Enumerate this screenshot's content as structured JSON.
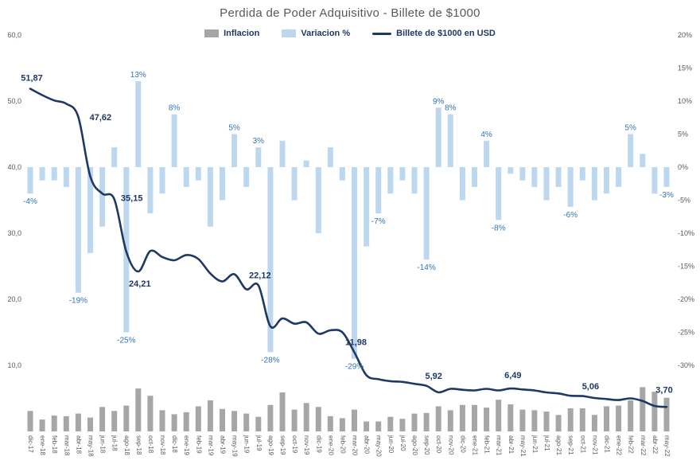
{
  "title": "Perdida de Poder Adquisitivo - Billete de $1000",
  "legend": [
    {
      "label": "Inflacion",
      "marker": "box",
      "color": "#a6a6a6"
    },
    {
      "label": "Variacion %",
      "marker": "box",
      "color": "#bdd7ee"
    },
    {
      "label": "Billete de $1000 en USD",
      "marker": "line",
      "color": "#1f3864"
    }
  ],
  "colors": {
    "background": "#ffffff",
    "bar_inflacion": "#a6a6a6",
    "bar_variacion": "#bdd7ee",
    "line_billete": "#1f3864",
    "label_variacion": "#2e75b6",
    "label_line": "#1f3864",
    "axis_text": "#595959"
  },
  "chart_data": {
    "type": "combo",
    "grid": false,
    "legend_position": "top",
    "categories": [
      "dic-17",
      "ene-18",
      "feb-18",
      "mar-18",
      "abr-18",
      "may-18",
      "jun-18",
      "jul-18",
      "ago-18",
      "sep-18",
      "oct-18",
      "nov-18",
      "dic-18",
      "ene-19",
      "feb-19",
      "mar-19",
      "abr-19",
      "may-19",
      "jun-19",
      "jul-19",
      "ago-19",
      "sep-19",
      "oct-19",
      "nov-19",
      "dic-19",
      "ene-20",
      "feb-20",
      "mar-20",
      "abr-20",
      "may-20",
      "jun-20",
      "jul-20",
      "ago-20",
      "sep-20",
      "oct-20",
      "nov-20",
      "dic-20",
      "ene-21",
      "feb-21",
      "mar-21",
      "abr-21",
      "may-21",
      "jun-21",
      "jul-21",
      "ago-21",
      "sep-21",
      "oct-21",
      "nov-21",
      "dic-21",
      "ene-22",
      "feb-22",
      "mar-22",
      "abr-22",
      "may-22"
    ],
    "left_axis": {
      "min": 0,
      "max": 60,
      "ticks": [
        [
          60,
          "60,0"
        ],
        [
          50,
          "50,0"
        ],
        [
          40,
          "40,0"
        ],
        [
          30,
          "30,0"
        ],
        [
          20,
          "20,0"
        ],
        [
          10,
          "10,0"
        ]
      ]
    },
    "right_axis": {
      "min": -30,
      "max": 20,
      "ticks": [
        [
          20,
          "20%"
        ],
        [
          15,
          "15%"
        ],
        [
          10,
          "10%"
        ],
        [
          5,
          "5%"
        ],
        [
          0,
          "0%"
        ],
        [
          -5,
          "-5%"
        ],
        [
          -10,
          "-10%"
        ],
        [
          -15,
          "-15%"
        ],
        [
          -20,
          "-20%"
        ],
        [
          -25,
          "-25%"
        ],
        [
          -30,
          "-30%"
        ]
      ]
    },
    "series": [
      {
        "name": "Inflacion",
        "type": "bar",
        "axis": "left",
        "color": "#a6a6a6",
        "values": [
          3.1,
          1.8,
          2.4,
          2.3,
          2.7,
          2.1,
          3.7,
          3.1,
          3.9,
          6.5,
          5.4,
          3.2,
          2.6,
          2.9,
          3.8,
          4.7,
          3.4,
          3.1,
          2.7,
          2.2,
          4.0,
          5.9,
          3.3,
          4.3,
          3.7,
          2.3,
          2.0,
          3.3,
          1.5,
          1.5,
          2.2,
          1.9,
          2.7,
          2.8,
          3.8,
          3.2,
          4.0,
          4.0,
          3.6,
          4.8,
          4.1,
          3.3,
          3.2,
          3.0,
          2.5,
          3.5,
          3.5,
          2.5,
          3.8,
          3.9,
          4.7,
          6.7,
          6.0,
          5.1
        ]
      },
      {
        "name": "Variacion %",
        "type": "bar",
        "axis": "right",
        "color": "#bdd7ee",
        "values": [
          -4,
          -2,
          -2,
          -3,
          -19,
          -13,
          -9,
          3,
          -25,
          13,
          -7,
          -4,
          8,
          -3,
          -2,
          -9,
          -5,
          5,
          -3,
          3,
          -28,
          4,
          -5,
          1,
          -10,
          3,
          -2,
          -29,
          -12,
          -7,
          -4,
          -2,
          -4,
          -14,
          9,
          8,
          -5,
          -3,
          4,
          -8,
          -1,
          -2,
          -3,
          -5,
          -3,
          -6,
          -2,
          -5,
          -4,
          -3,
          5,
          2,
          -4,
          -3
        ],
        "labels": {
          "0": "-4%",
          "4": "-19%",
          "8": "-25%",
          "9": "13%",
          "12": "8%",
          "17": "5%",
          "19": "3%",
          "20": "-28%",
          "27": "-29%",
          "29": "-7%",
          "33": "-14%",
          "34": "9%",
          "35": "8%",
          "38": "4%",
          "39": "-8%",
          "45": "-6%",
          "50": "5%",
          "53": "-3%"
        }
      },
      {
        "name": "Billete de $1000 en USD",
        "type": "line",
        "axis": "left",
        "color": "#1f3864",
        "values": [
          51.87,
          50.9,
          50.1,
          49.6,
          47.62,
          38.6,
          36.0,
          35.15,
          27.2,
          24.21,
          27.3,
          26.4,
          25.9,
          26.7,
          26.1,
          23.9,
          22.7,
          23.8,
          21.5,
          22.12,
          15.9,
          17.1,
          16.3,
          16.5,
          14.8,
          15.3,
          15.0,
          11.98,
          8.5,
          7.9,
          7.6,
          7.5,
          7.2,
          6.9,
          5.92,
          6.45,
          6.3,
          6.2,
          6.45,
          6.2,
          6.49,
          6.35,
          6.2,
          5.9,
          5.75,
          5.4,
          5.35,
          5.06,
          4.9,
          4.75,
          5.0,
          4.6,
          3.85,
          3.7
        ],
        "point_labels": [
          {
            "i": 0,
            "text": "51,87",
            "dx": 2,
            "dy": -10
          },
          {
            "i": 4,
            "text": "47,62",
            "dx": 28,
            "dy": 4
          },
          {
            "i": 7,
            "text": "35,15",
            "dx": 22,
            "dy": 2
          },
          {
            "i": 9,
            "text": "24,21",
            "dx": 2,
            "dy": 19
          },
          {
            "i": 19,
            "text": "22,12",
            "dx": 2,
            "dy": -9
          },
          {
            "i": 27,
            "text": "11,98",
            "dx": 2,
            "dy": -9
          },
          {
            "i": 34,
            "text": "5,92",
            "dx": -6,
            "dy": -17
          },
          {
            "i": 40,
            "text": "6,49",
            "dx": 3,
            "dy": -13
          },
          {
            "i": 47,
            "text": "5,06",
            "dx": -5,
            "dy": -11
          },
          {
            "i": 53,
            "text": "3,70",
            "dx": -3,
            "dy": -18
          }
        ]
      }
    ]
  }
}
